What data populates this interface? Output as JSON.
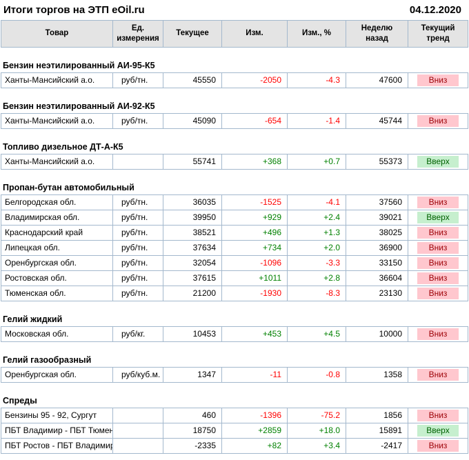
{
  "header": {
    "title": "Итоги торгов на ЭТП eOil.ru",
    "date": "04.12.2020"
  },
  "columns": [
    "Товар",
    "Ед.\nизмерения",
    "Текущее",
    "Изм.",
    "Изм., %",
    "Неделю\nназад",
    "Текущий\nтренд"
  ],
  "colors": {
    "negative_text": "#ff0000",
    "positive_text": "#008000",
    "trend_down_bg": "#ffc7ce",
    "trend_down_text": "#9c0006",
    "trend_up_bg": "#c6efce",
    "trend_up_text": "#006100",
    "header_bg": "#e4e4e4",
    "border": "#a3b8cd"
  },
  "sections": [
    {
      "title": "Бензин неэтилированный АИ-95-К5",
      "rows": [
        {
          "product": "Ханты-Мансийский а.о.",
          "unit": "руб/тн.",
          "current": "45550",
          "change": "-2050",
          "change_pct": "-4.3",
          "week_ago": "47600",
          "trend": "Вниз",
          "trend_dir": "down"
        }
      ]
    },
    {
      "title": "Бензин неэтилированный АИ-92-К5",
      "rows": [
        {
          "product": "Ханты-Мансийский а.о.",
          "unit": "руб/тн.",
          "current": "45090",
          "change": "-654",
          "change_pct": "-1.4",
          "week_ago": "45744",
          "trend": "Вниз",
          "trend_dir": "down"
        }
      ]
    },
    {
      "title": "Топливо дизельное ДТ-А-К5",
      "rows": [
        {
          "product": "Ханты-Мансийский а.о.",
          "unit": "",
          "current": "55741",
          "change": "+368",
          "change_pct": "+0.7",
          "week_ago": "55373",
          "trend": "Вверх",
          "trend_dir": "up"
        }
      ]
    },
    {
      "title": "Пропан-бутан автомобильный",
      "rows": [
        {
          "product": "Белгородская обл.",
          "unit": "руб/тн.",
          "current": "36035",
          "change": "-1525",
          "change_pct": "-4.1",
          "week_ago": "37560",
          "trend": "Вниз",
          "trend_dir": "down"
        },
        {
          "product": "Владимирская обл.",
          "unit": "руб/тн.",
          "current": "39950",
          "change": "+929",
          "change_pct": "+2.4",
          "week_ago": "39021",
          "trend": "Вверх",
          "trend_dir": "up"
        },
        {
          "product": "Краснодарский край",
          "unit": "руб/тн.",
          "current": "38521",
          "change": "+496",
          "change_pct": "+1.3",
          "week_ago": "38025",
          "trend": "Вниз",
          "trend_dir": "down"
        },
        {
          "product": "Липецкая обл.",
          "unit": "руб/тн.",
          "current": "37634",
          "change": "+734",
          "change_pct": "+2.0",
          "week_ago": "36900",
          "trend": "Вниз",
          "trend_dir": "down"
        },
        {
          "product": "Оренбургская обл.",
          "unit": "руб/тн.",
          "current": "32054",
          "change": "-1096",
          "change_pct": "-3.3",
          "week_ago": "33150",
          "trend": "Вниз",
          "trend_dir": "down"
        },
        {
          "product": "Ростовская обл.",
          "unit": "руб/тн.",
          "current": "37615",
          "change": "+1011",
          "change_pct": "+2.8",
          "week_ago": "36604",
          "trend": "Вниз",
          "trend_dir": "down"
        },
        {
          "product": "Тюменская обл.",
          "unit": "руб/тн.",
          "current": "21200",
          "change": "-1930",
          "change_pct": "-8.3",
          "week_ago": "23130",
          "trend": "Вниз",
          "trend_dir": "down"
        }
      ]
    },
    {
      "title": "Гелий жидкий",
      "rows": [
        {
          "product": "Московская обл.",
          "unit": "руб/кг.",
          "current": "10453",
          "change": "+453",
          "change_pct": "+4.5",
          "week_ago": "10000",
          "trend": "Вниз",
          "trend_dir": "down"
        }
      ]
    },
    {
      "title": "Гелий газообразный",
      "rows": [
        {
          "product": "Оренбургская обл.",
          "unit": "руб/куб.м.",
          "current": "1347",
          "change": "-11",
          "change_pct": "-0.8",
          "week_ago": "1358",
          "trend": "Вниз",
          "trend_dir": "down"
        }
      ]
    },
    {
      "title": "Спреды",
      "rows": [
        {
          "product": "Бензины 95 - 92, Сургут",
          "unit": "",
          "current": "460",
          "change": "-1396",
          "change_pct": "-75.2",
          "week_ago": "1856",
          "trend": "Вниз",
          "trend_dir": "down"
        },
        {
          "product": "ПБТ Владимир - ПБТ Тюмень",
          "unit": "",
          "current": "18750",
          "change": "+2859",
          "change_pct": "+18.0",
          "week_ago": "15891",
          "trend": "Вверх",
          "trend_dir": "up"
        },
        {
          "product": "ПБТ Ростов - ПБТ Владимир",
          "unit": "",
          "current": "-2335",
          "change": "+82",
          "change_pct": "+3.4",
          "week_ago": "-2417",
          "trend": "Вниз",
          "trend_dir": "down"
        }
      ]
    }
  ]
}
